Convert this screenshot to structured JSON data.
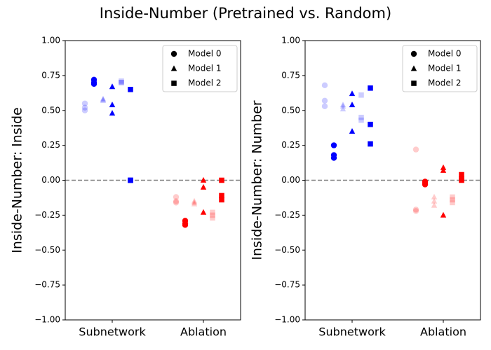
{
  "title": "Inside-Number (Pretrained vs. Random)",
  "chart_data": [
    {
      "type": "strip",
      "ylabel": "Inside-Number: Inside",
      "categories": [
        "Subnetwork",
        "Ablation"
      ],
      "category_colors": [
        "#0000ff",
        "#ff0000"
      ],
      "ylim": [
        -1,
        1
      ],
      "yticks": [
        {
          "value": -1,
          "label": "−1.00"
        },
        {
          "value": -0.75,
          "label": "−0.75"
        },
        {
          "value": -0.5,
          "label": "−0.50"
        },
        {
          "value": -0.25,
          "label": "−0.25"
        },
        {
          "value": 0,
          "label": "0.00"
        },
        {
          "value": 0.25,
          "label": "0.25"
        },
        {
          "value": 0.5,
          "label": "0.50"
        },
        {
          "value": 0.75,
          "label": "0.75"
        },
        {
          "value": 1,
          "label": "1.00"
        }
      ],
      "hline": 0,
      "legend": "upper right",
      "series": [
        {
          "name": "Model 0",
          "marker": "circle",
          "values": [
            [
              0.72,
              0.7,
              0.69
            ],
            [
              -0.29,
              -0.31,
              -0.32
            ]
          ],
          "random_values": [
            [
              0.55,
              0.52,
              0.5
            ],
            [
              -0.12,
              -0.15,
              -0.16
            ]
          ]
        },
        {
          "name": "Model 1",
          "marker": "triangle",
          "values": [
            [
              0.67,
              0.54,
              0.48
            ],
            [
              0.0,
              -0.05,
              -0.23
            ]
          ],
          "random_values": [
            [
              0.58,
              0.58,
              0.57
            ],
            [
              -0.15,
              -0.16,
              -0.17
            ]
          ]
        },
        {
          "name": "Model 2",
          "marker": "square",
          "values": [
            [
              0.65,
              0.0,
              0.0
            ],
            [
              0.0,
              -0.11,
              -0.14
            ]
          ],
          "random_values": [
            [
              0.71,
              0.7,
              0.7
            ],
            [
              -0.23,
              -0.25,
              -0.27
            ]
          ]
        }
      ]
    },
    {
      "type": "strip",
      "ylabel": "Inside-Number: Number",
      "categories": [
        "Subnetwork",
        "Ablation"
      ],
      "category_colors": [
        "#0000ff",
        "#ff0000"
      ],
      "ylim": [
        -1,
        1
      ],
      "yticks": [
        {
          "value": -1,
          "label": "−1.00"
        },
        {
          "value": -0.75,
          "label": "−0.75"
        },
        {
          "value": -0.5,
          "label": "−0.50"
        },
        {
          "value": -0.25,
          "label": "−0.25"
        },
        {
          "value": 0,
          "label": "0.00"
        },
        {
          "value": 0.25,
          "label": "0.25"
        },
        {
          "value": 0.5,
          "label": "0.50"
        },
        {
          "value": 0.75,
          "label": "0.75"
        },
        {
          "value": 1,
          "label": "1.00"
        }
      ],
      "hline": 0,
      "legend": "upper right",
      "series": [
        {
          "name": "Model 0",
          "marker": "circle",
          "values": [
            [
              0.25,
              0.18,
              0.16
            ],
            [
              -0.01,
              -0.02,
              -0.03
            ]
          ],
          "random_values": [
            [
              0.68,
              0.57,
              0.53
            ],
            [
              0.22,
              -0.21,
              -0.22
            ]
          ]
        },
        {
          "name": "Model 1",
          "marker": "triangle",
          "values": [
            [
              0.62,
              0.54,
              0.35
            ],
            [
              0.09,
              0.07,
              -0.25
            ]
          ],
          "random_values": [
            [
              0.54,
              0.53,
              0.51
            ],
            [
              -0.12,
              -0.15,
              -0.18
            ]
          ]
        },
        {
          "name": "Model 2",
          "marker": "square",
          "values": [
            [
              0.66,
              0.4,
              0.26
            ],
            [
              0.04,
              0.01,
              0.0
            ]
          ],
          "random_values": [
            [
              0.61,
              0.45,
              0.43
            ],
            [
              -0.12,
              -0.14,
              -0.16
            ]
          ]
        }
      ]
    }
  ]
}
